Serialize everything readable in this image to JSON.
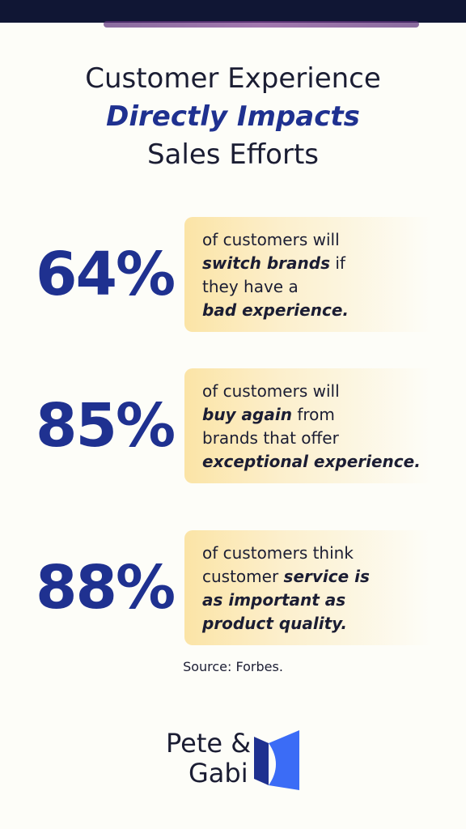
{
  "header": {
    "title_lines": [
      {
        "text": "Customer Experience",
        "emphasis": false
      },
      {
        "text": "Directly Impacts",
        "emphasis": true
      },
      {
        "text": "Sales Efforts",
        "emphasis": false
      }
    ]
  },
  "stats": [
    {
      "figure": "64%",
      "lines": [
        [
          {
            "text": "of customers will",
            "emphasis": false
          }
        ],
        [
          {
            "text": "switch brands",
            "emphasis": true
          },
          {
            "text": " if",
            "emphasis": false
          }
        ],
        [
          {
            "text": "they have a",
            "emphasis": false
          }
        ],
        [
          {
            "text": "bad experience.",
            "emphasis": true
          }
        ]
      ]
    },
    {
      "figure": "85%",
      "lines": [
        [
          {
            "text": "of customers will",
            "emphasis": false
          }
        ],
        [
          {
            "text": "buy again",
            "emphasis": true
          },
          {
            "text": " from",
            "emphasis": false
          }
        ],
        [
          {
            "text": "brands that offer",
            "emphasis": false
          }
        ],
        [
          {
            "text": "exceptional experience.",
            "emphasis": true
          }
        ]
      ]
    },
    {
      "figure": "88%",
      "lines": [
        [
          {
            "text": "of customers think",
            "emphasis": false
          }
        ],
        [
          {
            "text": "customer ",
            "emphasis": false
          },
          {
            "text": "service is",
            "emphasis": true
          }
        ],
        [
          {
            "text": "as important as",
            "emphasis": true
          }
        ],
        [
          {
            "text": "product quality.",
            "emphasis": true
          }
        ]
      ]
    }
  ],
  "source": "Source: Forbes.",
  "logo": {
    "line1": "Pete &",
    "line2": "Gabi"
  }
}
